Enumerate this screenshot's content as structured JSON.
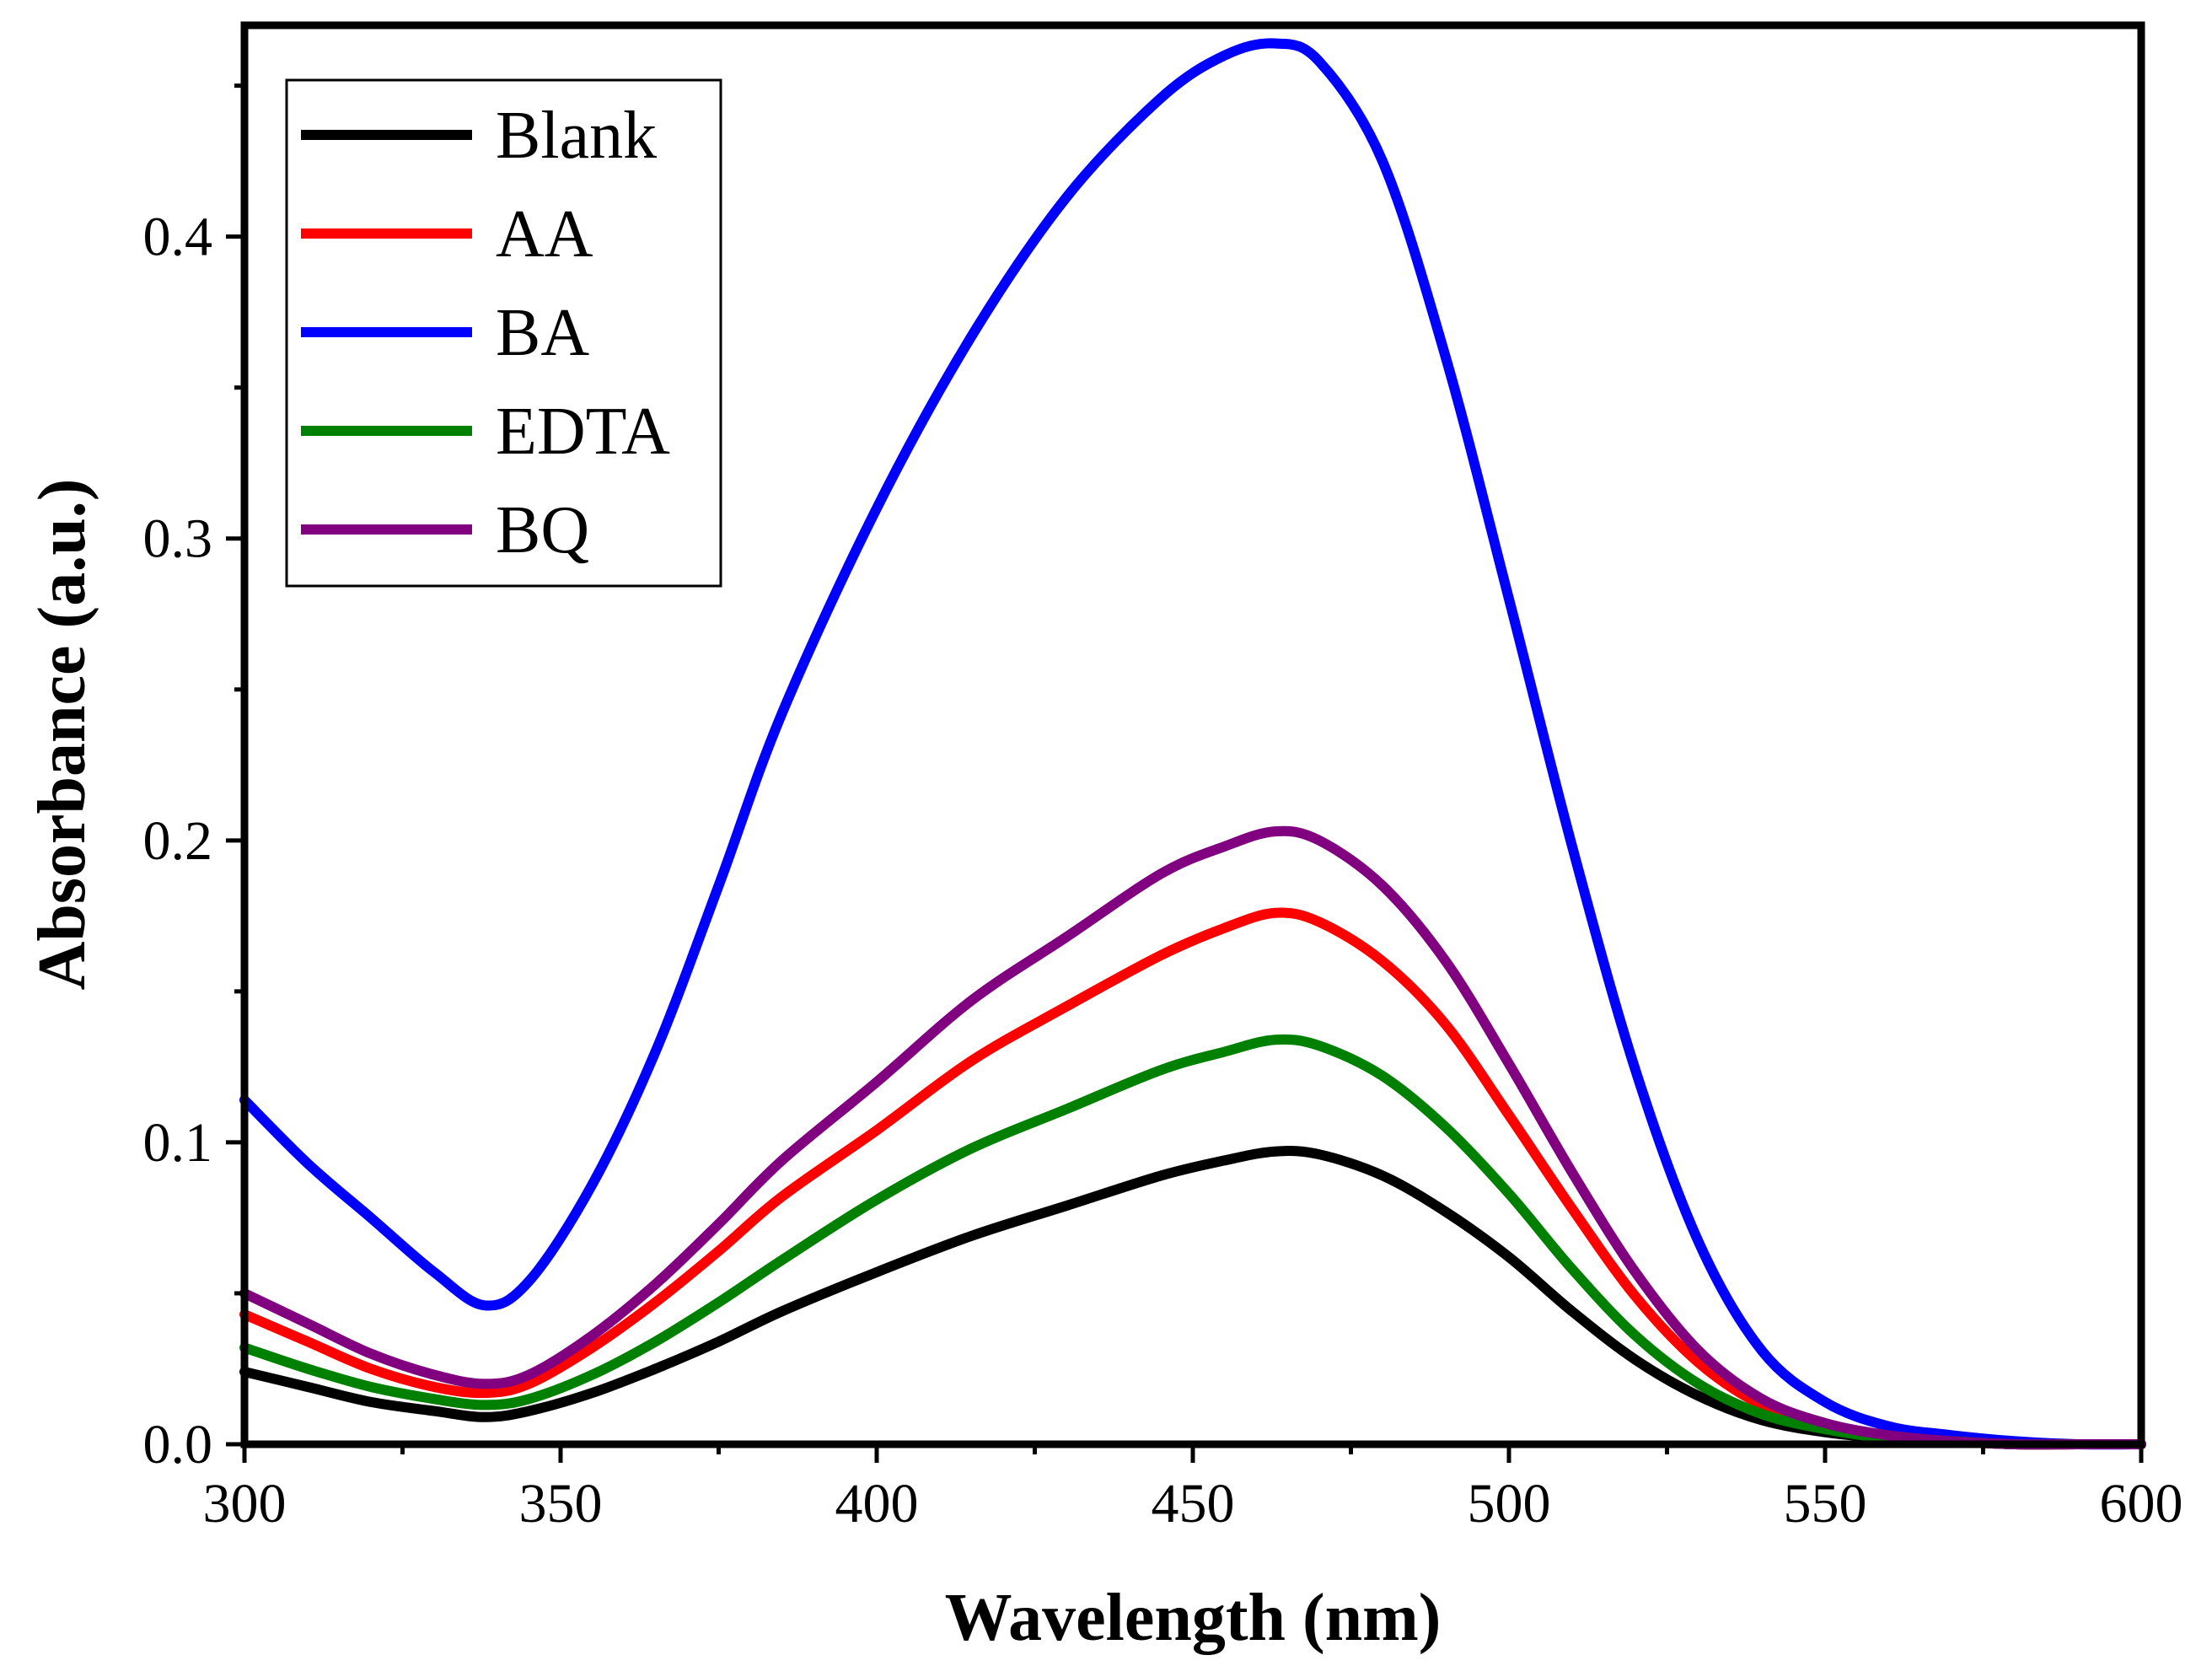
{
  "chart_data": {
    "type": "line",
    "title": "",
    "xlabel": "Wavelength (nm)",
    "ylabel": "Absorbance (a.u.)",
    "xlim": [
      300,
      600
    ],
    "ylim": [
      0,
      0.47
    ],
    "x_ticks": [
      300,
      350,
      400,
      450,
      500,
      550,
      600
    ],
    "x_tick_labels": [
      "300",
      "350",
      "400",
      "450",
      "500",
      "550",
      "600"
    ],
    "y_ticks": [
      0.0,
      0.1,
      0.2,
      0.3,
      0.4
    ],
    "y_tick_labels": [
      "0.0",
      "0.1",
      "0.2",
      "0.3",
      "0.4"
    ],
    "grid": false,
    "legend_position": "top-left",
    "x": [
      300,
      310,
      320,
      330,
      338,
      345,
      355,
      365,
      375,
      385,
      400,
      415,
      430,
      445,
      455,
      463,
      470,
      480,
      490,
      500,
      510,
      520,
      530,
      540,
      550,
      560,
      570,
      580,
      590,
      600
    ],
    "series": [
      {
        "name": "Blank",
        "color": "#000000",
        "values": [
          0.024,
          0.019,
          0.014,
          0.011,
          0.009,
          0.011,
          0.017,
          0.025,
          0.034,
          0.044,
          0.057,
          0.069,
          0.079,
          0.089,
          0.094,
          0.097,
          0.096,
          0.089,
          0.077,
          0.062,
          0.044,
          0.028,
          0.016,
          0.008,
          0.004,
          0.002,
          0.001,
          0.0,
          0.0,
          0.0
        ]
      },
      {
        "name": "AA",
        "color": "#ff0000",
        "values": [
          0.043,
          0.034,
          0.025,
          0.019,
          0.017,
          0.02,
          0.032,
          0.047,
          0.064,
          0.082,
          0.104,
          0.127,
          0.145,
          0.162,
          0.171,
          0.176,
          0.173,
          0.16,
          0.139,
          0.109,
          0.078,
          0.049,
          0.027,
          0.013,
          0.006,
          0.002,
          0.001,
          0.0,
          0.0,
          0.0
        ]
      },
      {
        "name": "BA",
        "color": "#0000ff",
        "values": [
          0.114,
          0.093,
          0.075,
          0.057,
          0.046,
          0.054,
          0.086,
          0.13,
          0.185,
          0.242,
          0.31,
          0.367,
          0.413,
          0.446,
          0.46,
          0.464,
          0.458,
          0.425,
          0.36,
          0.28,
          0.198,
          0.124,
          0.067,
          0.031,
          0.014,
          0.006,
          0.003,
          0.001,
          0.0,
          0.0
        ]
      },
      {
        "name": "EDTA",
        "color": "#008000",
        "values": [
          0.032,
          0.025,
          0.019,
          0.015,
          0.013,
          0.015,
          0.023,
          0.034,
          0.047,
          0.061,
          0.081,
          0.098,
          0.111,
          0.124,
          0.13,
          0.134,
          0.132,
          0.122,
          0.105,
          0.083,
          0.058,
          0.036,
          0.02,
          0.01,
          0.005,
          0.002,
          0.001,
          0.0,
          0.0,
          0.0
        ]
      },
      {
        "name": "BQ",
        "color": "#800080",
        "values": [
          0.05,
          0.04,
          0.03,
          0.023,
          0.02,
          0.023,
          0.036,
          0.053,
          0.073,
          0.094,
          0.12,
          0.147,
          0.168,
          0.189,
          0.198,
          0.203,
          0.2,
          0.185,
          0.16,
          0.126,
          0.09,
          0.057,
          0.031,
          0.015,
          0.007,
          0.003,
          0.001,
          0.0,
          0.0,
          0.0
        ]
      }
    ]
  }
}
